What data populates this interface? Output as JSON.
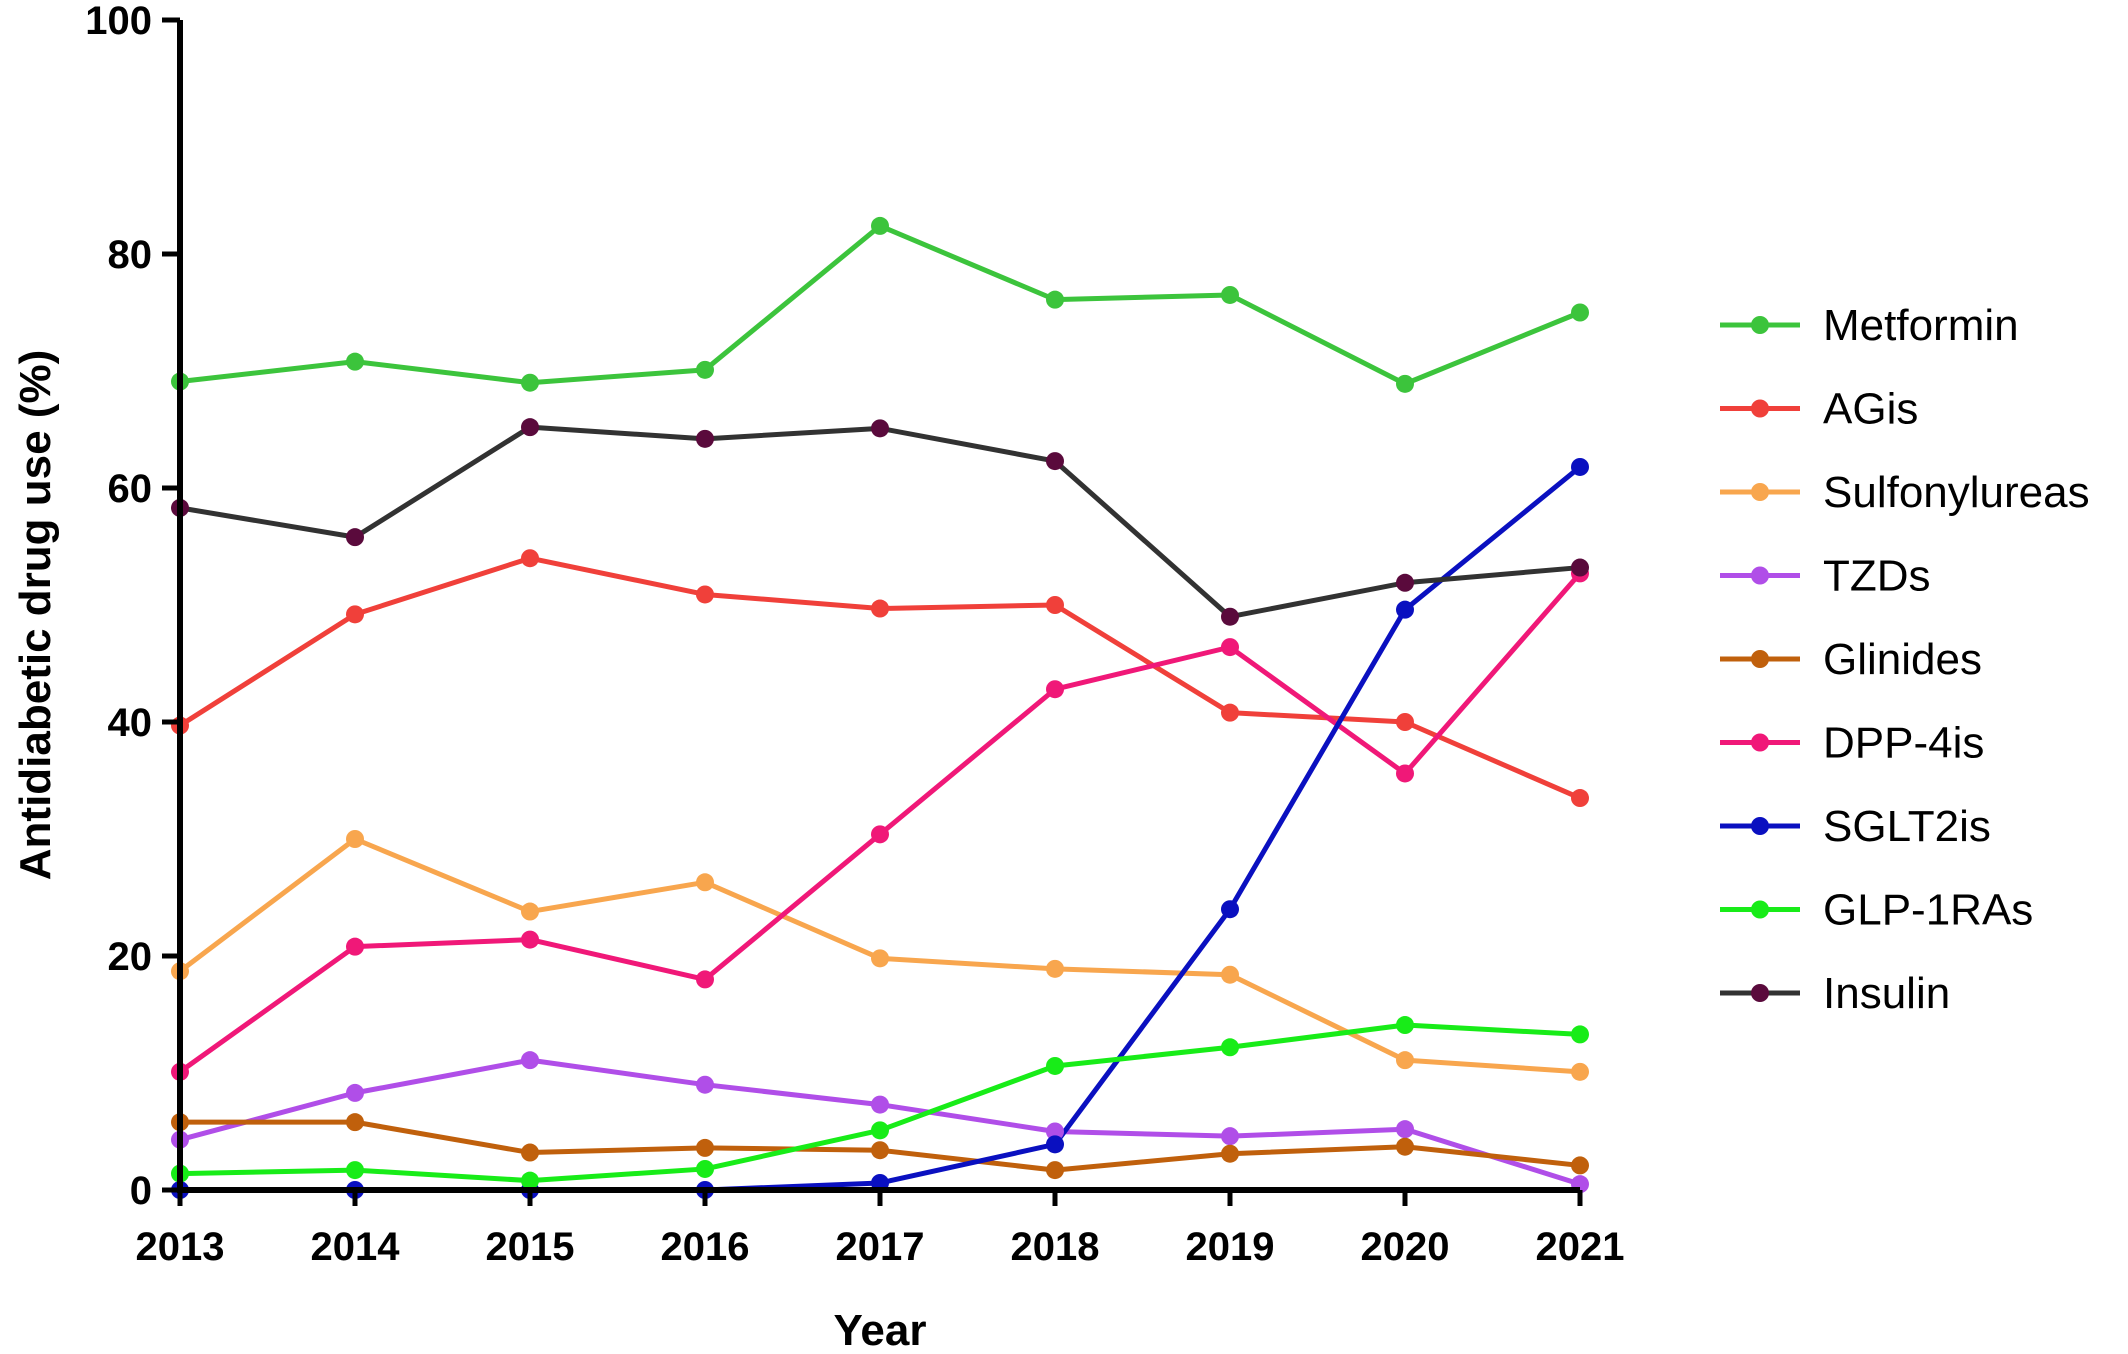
{
  "chart_data": {
    "type": "line",
    "xlabel": "Year",
    "ylabel": "Antidiabetic drug use (%)",
    "x": [
      "2013",
      "2014",
      "2015",
      "2016",
      "2017",
      "2018",
      "2019",
      "2020",
      "2021"
    ],
    "ylim": [
      0,
      100
    ],
    "yticks": [
      "0",
      "20",
      "40",
      "60",
      "80",
      "100"
    ],
    "grid": false,
    "legend": "right",
    "series": [
      {
        "name": "Metformin",
        "color": "#3cc43c",
        "values": [
          69.1,
          70.8,
          69.0,
          70.1,
          82.4,
          76.1,
          76.5,
          68.9,
          75.0
        ]
      },
      {
        "name": "AGis",
        "color": "#f0403a",
        "values": [
          39.7,
          49.2,
          54.0,
          50.9,
          49.7,
          50.0,
          40.8,
          40.0,
          33.5
        ]
      },
      {
        "name": "Sulfonylureas",
        "color": "#f8a64e",
        "values": [
          18.7,
          30.0,
          23.8,
          26.3,
          19.8,
          18.9,
          18.4,
          11.1,
          10.1
        ]
      },
      {
        "name": "TZDs",
        "color": "#b04ee8",
        "values": [
          4.3,
          8.3,
          11.1,
          9.0,
          7.3,
          5.0,
          4.6,
          5.2,
          0.5
        ]
      },
      {
        "name": "Glinides",
        "color": "#c0600c",
        "values": [
          5.8,
          5.8,
          3.2,
          3.6,
          3.4,
          1.7,
          3.1,
          3.7,
          2.1
        ]
      },
      {
        "name": "DPP-4is",
        "color": "#f01878",
        "values": [
          10.1,
          20.8,
          21.4,
          18.0,
          30.4,
          42.8,
          46.4,
          35.6,
          52.7
        ]
      },
      {
        "name": "SGLT2is",
        "color": "#0a10c0",
        "values": [
          0,
          0,
          0,
          0,
          0.6,
          3.9,
          24.0,
          49.6,
          61.8
        ]
      },
      {
        "name": "GLP-1RAs",
        "color": "#18ec18",
        "values": [
          1.4,
          1.7,
          0.8,
          1.8,
          5.1,
          10.6,
          12.2,
          14.1,
          13.3
        ]
      },
      {
        "name": "Insulin",
        "color": "#323232",
        "marker_color": "#5a0a3c",
        "values": [
          58.3,
          55.8,
          65.2,
          64.2,
          65.1,
          62.3,
          49.0,
          51.9,
          53.2
        ]
      }
    ]
  }
}
